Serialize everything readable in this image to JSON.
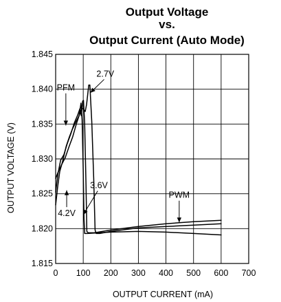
{
  "chart_data": {
    "type": "line",
    "title_lines": [
      "Output Voltage",
      "vs.",
      "Output Current (Auto Mode)"
    ],
    "xlabel": "OUTPUT CURRENT (mA)",
    "ylabel": "OUTPUT VOLTAGE (V)",
    "xlim": [
      0,
      700
    ],
    "ylim": [
      1.815,
      1.845
    ],
    "x_ticks": [
      0,
      100,
      200,
      300,
      400,
      500,
      600,
      700
    ],
    "x_tick_labels": [
      "0",
      "100",
      "200",
      "300",
      "400",
      "500",
      "600",
      "700"
    ],
    "y_ticks": [
      1.815,
      1.82,
      1.825,
      1.83,
      1.835,
      1.84,
      1.845
    ],
    "y_tick_labels": [
      "1.815",
      "1.820",
      "1.825",
      "1.830",
      "1.835",
      "1.840",
      "1.845"
    ],
    "x_grid": [
      0,
      100,
      200,
      300,
      400,
      500,
      600
    ],
    "grid": true,
    "series": [
      {
        "name": "2.7V",
        "points": [
          [
            0,
            1.8234
          ],
          [
            8,
            1.8262
          ],
          [
            15,
            1.8282
          ],
          [
            25,
            1.8296
          ],
          [
            38,
            1.8318
          ],
          [
            50,
            1.8332
          ],
          [
            60,
            1.8342
          ],
          [
            72,
            1.8352
          ],
          [
            85,
            1.8362
          ],
          [
            95,
            1.8372
          ],
          [
            100,
            1.8372
          ],
          [
            107,
            1.8368
          ],
          [
            112,
            1.8378
          ],
          [
            120,
            1.8406
          ],
          [
            124,
            1.8406
          ],
          [
            131,
            1.8353
          ],
          [
            138,
            1.8272
          ],
          [
            143,
            1.8198
          ],
          [
            147,
            1.8193
          ],
          [
            160,
            1.8193
          ],
          [
            200,
            1.8196
          ],
          [
            300,
            1.8201
          ],
          [
            400,
            1.8203
          ],
          [
            500,
            1.8205
          ],
          [
            600,
            1.8207
          ]
        ]
      },
      {
        "name": "3.6V",
        "points": [
          [
            0,
            1.8252
          ],
          [
            8,
            1.8278
          ],
          [
            18,
            1.8298
          ],
          [
            30,
            1.8306
          ],
          [
            42,
            1.8322
          ],
          [
            55,
            1.8336
          ],
          [
            68,
            1.8352
          ],
          [
            80,
            1.8363
          ],
          [
            88,
            1.8372
          ],
          [
            93,
            1.8362
          ],
          [
            98,
            1.8383
          ],
          [
            101,
            1.8384
          ],
          [
            105,
            1.8352
          ],
          [
            110,
            1.8262
          ],
          [
            113,
            1.8196
          ],
          [
            118,
            1.8194
          ],
          [
            140,
            1.8194
          ],
          [
            200,
            1.8198
          ],
          [
            300,
            1.8203
          ],
          [
            400,
            1.8207
          ],
          [
            500,
            1.821
          ],
          [
            600,
            1.8212
          ]
        ]
      },
      {
        "name": "4.2V",
        "points": [
          [
            0,
            1.8272
          ],
          [
            10,
            1.8282
          ],
          [
            22,
            1.8292
          ],
          [
            35,
            1.8302
          ],
          [
            48,
            1.8317
          ],
          [
            62,
            1.8332
          ],
          [
            75,
            1.835
          ],
          [
            85,
            1.8362
          ],
          [
            92,
            1.838
          ],
          [
            96,
            1.8356
          ],
          [
            100,
            1.8285
          ],
          [
            103,
            1.8213
          ],
          [
            105,
            1.8193
          ],
          [
            115,
            1.8193
          ],
          [
            200,
            1.8195
          ],
          [
            300,
            1.8196
          ],
          [
            400,
            1.8195
          ],
          [
            500,
            1.8193
          ],
          [
            600,
            1.8191
          ]
        ]
      }
    ],
    "annotations": [
      {
        "text": "PFM",
        "x": 37,
        "y": 1.8398,
        "arrow_to": [
          37,
          1.8348
        ]
      },
      {
        "text": "2.7V",
        "x": 180,
        "y": 1.8418,
        "arrow_to": [
          126,
          1.8395
        ]
      },
      {
        "text": "3.6V",
        "x": 157,
        "y": 1.8258,
        "arrow_to": [
          100,
          1.822
        ]
      },
      {
        "text": "4.2V",
        "x": 40,
        "y": 1.8218,
        "arrow_to": [
          40,
          1.8255
        ]
      },
      {
        "text": "PWM",
        "x": 448,
        "y": 1.8244,
        "arrow_to": [
          448,
          1.8209
        ]
      }
    ]
  }
}
